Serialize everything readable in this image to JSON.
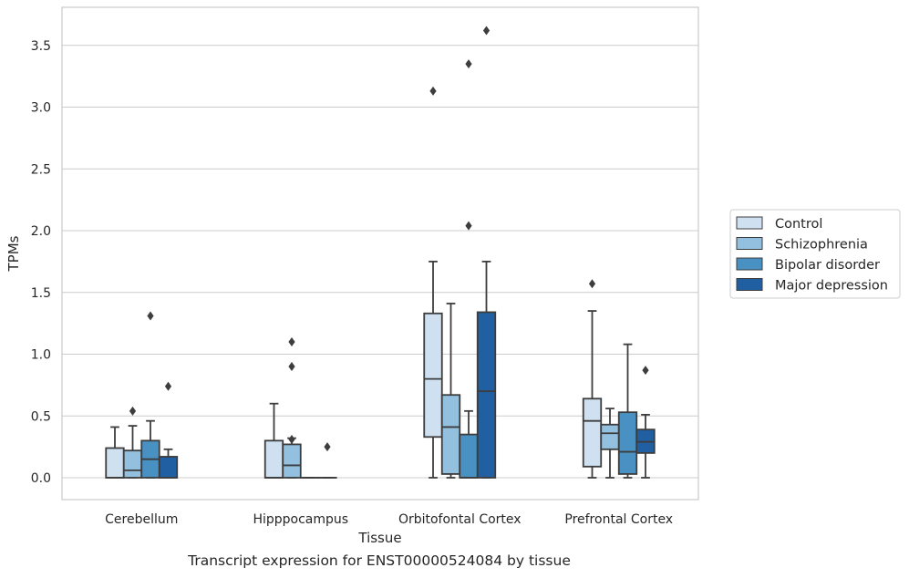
{
  "caption": "Transcript expression for ENST00000524084 by tissue",
  "chart_data": {
    "type": "box",
    "xlabel": "Tissue",
    "ylabel": "TPMs",
    "ylim": [
      -0.18,
      3.78
    ],
    "yticks": [
      0.0,
      0.5,
      1.0,
      1.5,
      2.0,
      2.5,
      3.0,
      3.5
    ],
    "ytick_labels": [
      "0.0",
      "0.5",
      "1.0",
      "1.5",
      "2.0",
      "2.5",
      "3.0",
      "3.5"
    ],
    "grid": "horizontal",
    "legend_position": "right",
    "categories": [
      "Cerebellum",
      "Hipppocampus",
      "Orbitofontal Cortex",
      "Prefrontal Cortex"
    ],
    "colors": {
      "Control": "#cfe0f1",
      "Schizophrenia": "#93c0de",
      "Bipolar disorder": "#4a91c3",
      "Major depression": "#1f5fa2"
    },
    "series": [
      {
        "name": "Control",
        "boxes": [
          {
            "whislo": 0.0,
            "q1": 0.0,
            "med": 0.0,
            "q3": 0.24,
            "whishi": 0.41,
            "fliers": []
          },
          {
            "whislo": 0.0,
            "q1": 0.0,
            "med": 0.0,
            "q3": 0.3,
            "whishi": 0.6,
            "fliers": []
          },
          {
            "whislo": 0.0,
            "q1": 0.33,
            "med": 0.8,
            "q3": 1.33,
            "whishi": 1.75,
            "fliers": [
              3.13
            ]
          },
          {
            "whislo": 0.0,
            "q1": 0.09,
            "med": 0.46,
            "q3": 0.64,
            "whishi": 1.35,
            "fliers": [
              1.57
            ]
          }
        ]
      },
      {
        "name": "Schizophrenia",
        "boxes": [
          {
            "whislo": 0.0,
            "q1": 0.0,
            "med": 0.06,
            "q3": 0.22,
            "whishi": 0.42,
            "fliers": [
              0.54
            ]
          },
          {
            "whislo": 0.0,
            "q1": 0.0,
            "med": 0.1,
            "q3": 0.27,
            "whishi": 0.32,
            "fliers": [
              1.1,
              0.9,
              0.31
            ]
          },
          {
            "whislo": 0.0,
            "q1": 0.03,
            "med": 0.41,
            "q3": 0.67,
            "whishi": 1.41,
            "fliers": []
          },
          {
            "whislo": 0.0,
            "q1": 0.23,
            "med": 0.36,
            "q3": 0.43,
            "whishi": 0.56,
            "fliers": []
          }
        ]
      },
      {
        "name": "Bipolar disorder",
        "boxes": [
          {
            "whislo": 0.0,
            "q1": 0.0,
            "med": 0.15,
            "q3": 0.3,
            "whishi": 0.46,
            "fliers": [
              1.31
            ]
          },
          {
            "whislo": 0.0,
            "q1": 0.0,
            "med": 0.0,
            "q3": 0.0,
            "whishi": 0.0,
            "fliers": []
          },
          {
            "whislo": 0.0,
            "q1": 0.0,
            "med": 0.0,
            "q3": 0.35,
            "whishi": 0.54,
            "fliers": [
              3.35,
              2.04
            ]
          },
          {
            "whislo": 0.0,
            "q1": 0.03,
            "med": 0.21,
            "q3": 0.53,
            "whishi": 1.08,
            "fliers": []
          }
        ]
      },
      {
        "name": "Major depression",
        "boxes": [
          {
            "whislo": 0.0,
            "q1": 0.0,
            "med": 0.0,
            "q3": 0.17,
            "whishi": 0.23,
            "fliers": [
              0.74
            ]
          },
          {
            "whislo": 0.0,
            "q1": 0.0,
            "med": 0.0,
            "q3": 0.0,
            "whishi": 0.0,
            "fliers": [
              0.25
            ]
          },
          {
            "whislo": 0.0,
            "q1": 0.0,
            "med": 0.7,
            "q3": 1.34,
            "whishi": 1.75,
            "fliers": [
              3.62
            ]
          },
          {
            "whislo": 0.0,
            "q1": 0.2,
            "med": 0.29,
            "q3": 0.39,
            "whishi": 0.51,
            "fliers": [
              0.87
            ]
          }
        ]
      }
    ]
  }
}
